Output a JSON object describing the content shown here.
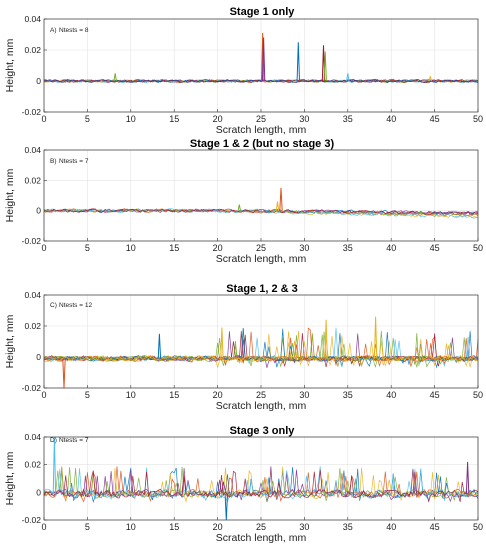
{
  "figure": {
    "panels": [
      {
        "title": "Stage 1 only",
        "tag": "A)",
        "ntests": "Ntests = 8"
      },
      {
        "title": "Stage 1 & 2 (but no stage 3)",
        "tag": "B)",
        "ntests": "Ntests = 7"
      },
      {
        "title": "Stage 1, 2 & 3",
        "tag": "C)",
        "ntests": "Ntests = 12"
      },
      {
        "title": "Stage 3 only",
        "tag": "D)",
        "ntests": "Ntests = 7"
      }
    ]
  },
  "chart_data": [
    {
      "type": "line",
      "title": "Stage 1 only",
      "annotation": "A) Ntests = 8",
      "xlabel": "Scratch length, mm",
      "ylabel": "Height, mm",
      "xlim": [
        0,
        50
      ],
      "ylim": [
        -0.02,
        0.04
      ],
      "xticks": [
        "0",
        "5",
        "10",
        "15",
        "20",
        "25",
        "30",
        "35",
        "40",
        "45",
        "50"
      ],
      "yticks": [
        "-0.02",
        "0",
        "0.02",
        "0.04"
      ],
      "grid": true,
      "series_colors": [
        "#0072BD",
        "#D95319",
        "#EDB120",
        "#7E2F8E",
        "#77AC30",
        "#4DBEEE",
        "#A2142F",
        "#1f3f8f"
      ],
      "baseline": 0.0,
      "noise": 0.0008,
      "spikes": [
        {
          "x": 25.2,
          "y": 0.031,
          "color": "#D95319"
        },
        {
          "x": 25.3,
          "y": 0.028,
          "color": "#7E2F8E"
        },
        {
          "x": 29.3,
          "y": 0.025,
          "color": "#0072BD"
        },
        {
          "x": 32.2,
          "y": 0.023,
          "color": "#A2142F"
        },
        {
          "x": 32.4,
          "y": 0.019,
          "color": "#77AC30"
        },
        {
          "x": 35.0,
          "y": 0.005,
          "color": "#4DBEEE"
        },
        {
          "x": 8.2,
          "y": 0.005,
          "color": "#77AC30"
        },
        {
          "x": 44.5,
          "y": 0.003,
          "color": "#EDB120"
        }
      ]
    },
    {
      "type": "line",
      "title": "Stage 1 & 2 (but no stage 3)",
      "annotation": "B) Ntests = 7",
      "xlabel": "Scratch length, mm",
      "ylabel": "Height, mm",
      "xlim": [
        0,
        50
      ],
      "ylim": [
        -0.02,
        0.04
      ],
      "xticks": [
        "0",
        "5",
        "10",
        "15",
        "20",
        "25",
        "30",
        "35",
        "40",
        "45",
        "50"
      ],
      "yticks": [
        "-0.02",
        "0",
        "0.02",
        "0.04"
      ],
      "grid": true,
      "series_colors": [
        "#0072BD",
        "#D95319",
        "#EDB120",
        "#7E2F8E",
        "#77AC30",
        "#4DBEEE",
        "#A2142F"
      ],
      "baseline": 0.0,
      "drift_end": -0.004,
      "noise": 0.001,
      "spikes": [
        {
          "x": 27.3,
          "y": 0.015,
          "color": "#D95319"
        },
        {
          "x": 26.9,
          "y": 0.006,
          "color": "#EDB120"
        },
        {
          "x": 22.5,
          "y": 0.004,
          "color": "#77AC30"
        }
      ]
    },
    {
      "type": "line",
      "title": "Stage 1, 2 & 3",
      "annotation": "C) Ntests = 12",
      "xlabel": "Scratch length, mm",
      "ylabel": "Height, mm",
      "xlim": [
        0,
        50
      ],
      "ylim": [
        -0.02,
        0.04
      ],
      "xticks": [
        "0",
        "5",
        "10",
        "15",
        "20",
        "25",
        "30",
        "35",
        "40",
        "45",
        "50"
      ],
      "yticks": [
        "-0.02",
        "0",
        "0.02",
        "0.04"
      ],
      "grid": true,
      "series_colors": [
        "#0072BD",
        "#D95319",
        "#EDB120",
        "#7E2F8E",
        "#77AC30",
        "#4DBEEE",
        "#A2142F",
        "#EDB120",
        "#77AC30",
        "#0072BD",
        "#D95319",
        "#EDB120"
      ],
      "baseline": -0.001,
      "noise": 0.0015,
      "stage3_start": 20,
      "stage3_peak": 0.02,
      "spikes": [
        {
          "x": 13.3,
          "y": 0.015,
          "color": "#0072BD"
        },
        {
          "x": 2.3,
          "y": -0.02,
          "color": "#D95319"
        },
        {
          "x": 20.5,
          "y": 0.019,
          "color": "#EDB120"
        },
        {
          "x": 32.5,
          "y": 0.024,
          "color": "#EDB120"
        },
        {
          "x": 38.2,
          "y": 0.026,
          "color": "#EDB120"
        }
      ]
    },
    {
      "type": "line",
      "title": "Stage 3 only",
      "annotation": "D) Ntests = 7",
      "xlabel": "Scratch length, mm",
      "ylabel": "Height, mm",
      "xlim": [
        0,
        50
      ],
      "ylim": [
        -0.02,
        0.04
      ],
      "xticks": [
        "0",
        "5",
        "10",
        "15",
        "20",
        "25",
        "30",
        "35",
        "40",
        "45",
        "50"
      ],
      "yticks": [
        "-0.02",
        "0",
        "0.02",
        "0.04"
      ],
      "grid": true,
      "series_colors": [
        "#0072BD",
        "#D95319",
        "#EDB120",
        "#7E2F8E",
        "#77AC30",
        "#4DBEEE",
        "#A2142F"
      ],
      "baseline": -0.001,
      "noise": 0.0025,
      "stage3_start": 1,
      "stage3_peak": 0.02,
      "spikes": [
        {
          "x": 1.2,
          "y": 0.04,
          "color": "#4DBEEE"
        },
        {
          "x": 21.0,
          "y": -0.02,
          "color": "#0072BD"
        },
        {
          "x": 48.8,
          "y": 0.022,
          "color": "#7E2F8E"
        }
      ]
    }
  ]
}
